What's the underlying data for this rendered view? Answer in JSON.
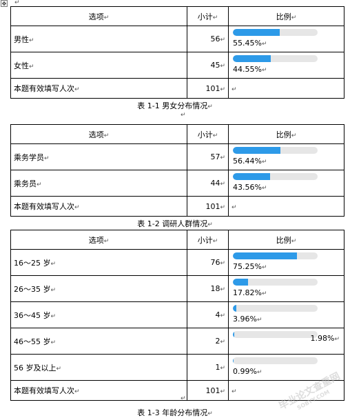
{
  "mark": "↵",
  "tables": [
    {
      "header": {
        "option": "选项",
        "count": "小计",
        "ratio": "比例"
      },
      "rows": [
        {
          "label": "男性",
          "count": "56",
          "pct_text": "55.45%",
          "pct": 55.45
        },
        {
          "label": "女性",
          "count": "45",
          "pct_text": "44.55%",
          "pct": 44.55
        }
      ],
      "total": {
        "label": "本题有效填写人次",
        "count": "101"
      },
      "caption": "表 1-1  男女分布情况"
    },
    {
      "header": {
        "option": "选项",
        "count": "小计",
        "ratio": "比例"
      },
      "rows": [
        {
          "label": "乘务学员",
          "count": "57",
          "pct_text": "56.44%",
          "pct": 56.44
        },
        {
          "label": "乘务员",
          "count": "44",
          "pct_text": "43.56%",
          "pct": 43.56
        }
      ],
      "total": {
        "label": "本题有效填写人次",
        "count": "101"
      },
      "caption": "表 1-2  调研人群情况"
    },
    {
      "header": {
        "option": "选项",
        "count": "小计",
        "ratio": "比例"
      },
      "rows": [
        {
          "label": "16～25 岁",
          "count": "76",
          "pct_text": "75.25%",
          "pct": 75.25
        },
        {
          "label": "26～35 岁",
          "count": "18",
          "pct_text": "17.82%",
          "pct": 17.82
        },
        {
          "label": "36～45 岁",
          "count": "4",
          "pct_text": "3.96%",
          "pct": 3.96
        },
        {
          "label": "46～55 岁",
          "count": "2",
          "pct_text": "1.98%",
          "pct": 1.98,
          "pct_right": true
        },
        {
          "label": "56 岁及以上",
          "count": "1",
          "pct_text": "0.99%",
          "pct": 0.99
        }
      ],
      "total": {
        "label": "本题有效填写人次",
        "count": "101"
      },
      "caption": "表 1-3  年龄分布情况"
    }
  ],
  "watermark": {
    "main": "毕业论文查重网",
    "sub": "SOBYY.COM"
  },
  "colors": {
    "bar_fill": "#2d9ae8",
    "bar_track": "#e6e6e6"
  }
}
